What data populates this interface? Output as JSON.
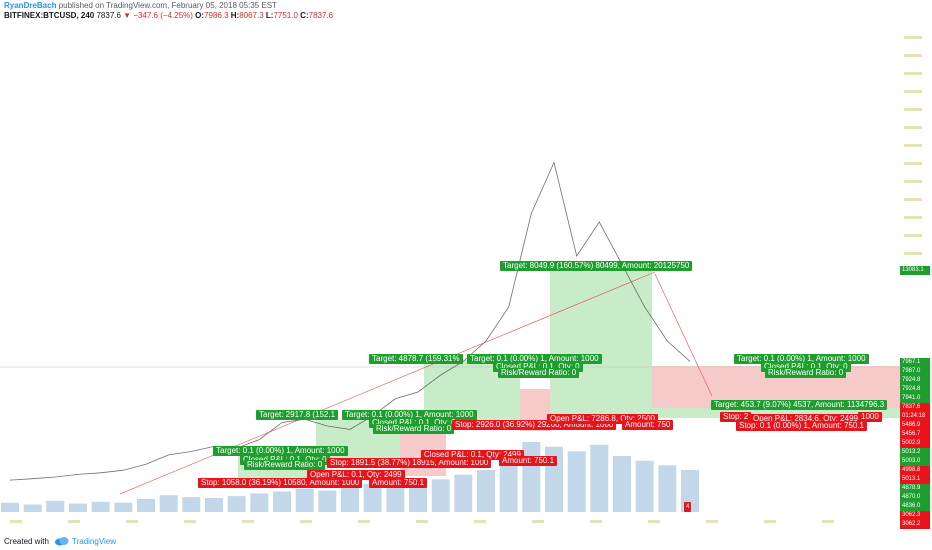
{
  "header": {
    "author": "RyanDreBach",
    "published": "published on TradingView.com, February 05, 2018 05:35 EST",
    "symbol": "BITFINEX:BTCUSD, 240",
    "last": "7837.6",
    "change": "▼ −347.6 (−4.25%)",
    "o_label": "O:",
    "o_value": "7986.3",
    "h_label": "H:",
    "h_value": "8067.3",
    "l_label": "L:",
    "l_value": "7751.0",
    "c_label": "C:",
    "c_value": "7837.6"
  },
  "footer": {
    "created_with": "Created with",
    "brand": "TradingView"
  },
  "colors": {
    "green": "#1e9e2e",
    "red": "#e8131b",
    "green_zone": "#c8ecc8",
    "red_zone": "#f7caca",
    "volume": "#8fb8d8",
    "price": "#6e6e6e",
    "axis": "#b8ad2f"
  },
  "annotations": {
    "a1_target": "Target: 0.1 (0.00%) 1, Amount: 1000",
    "a1_closed": "Closed P&L: 0.1, Qty: 0",
    "a1_rr": "Risk/Reward Ratio: 0",
    "a1_stop": "Stop: 1058.0 (36.19%) 10580, Amount: 1000",
    "a1_open": "Open P&L: 0.1, Qty: 2499",
    "a1_amount": "Amount: 750.1",
    "a2_target": "Target: 2917.8 (152.1",
    "a2_target2": "Target: 0.1 (0.00%) 1, Amount: 1000",
    "a2_closed": "Closed P&L: 0.1, Qty: 0",
    "a2_rr": "Risk/Reward Ratio: 0",
    "a2_stop": "Stop: 1891.5 (38.77%) 18915, Amount: 1000",
    "a2_open": "Closed P&L: 0.1, Qty: 2499",
    "a2_amount": "Amount: 750.1",
    "a3_target": "Target: 4878.7 (159.31%",
    "a3_target2": "Target: 0.1 (0.00%) 1, Amount: 1000",
    "a3_closed": "Closed P&L: 0.1, Qty: 0",
    "a3_rr": "Risk/Reward Ratio: 0",
    "a3_stop": "Stop: 2926.0 (36.92%) 29260, Amount: 1000",
    "a3_open": "Open P&L: 7286.8, Qty: 2500",
    "a3_amount": "Amount: 750",
    "a4_target": "Target: 8049.9 (160.57%) 80499, Amount: 20125750",
    "a5_target": "Target: 0.1 (0.00%) 1, Amount: 1000",
    "a5_closed": "Closed P&L: 0.1, Qty: 0",
    "a5_rr": "Risk/Reward Ratio: 0",
    "a5_target2": "Target: 453.7 (9.07%) 4537, Amount: 1134796.3",
    "a5_stop": "Stop: 2",
    "a5_open": "Open P&L: 2834.6, Qty: 2499",
    "a5_amount": "1000",
    "a5_stop2": "Stop: 0.1 (0.00%) 1, Amount: 750.1"
  },
  "price_tags": [
    {
      "text": "13083.1",
      "color": "#1e9e2e"
    },
    {
      "text": "7967.1",
      "color": "#1e9e2e"
    },
    {
      "text": "7987.0",
      "color": "#1e9e2e"
    },
    {
      "text": "7924.8",
      "color": "#1e9e2e"
    },
    {
      "text": "7924.8",
      "color": "#1e9e2e"
    },
    {
      "text": "7941.0",
      "color": "#1e9e2e"
    },
    {
      "text": "7837.6",
      "color": "#e8131b"
    },
    {
      "text": "01:24:18",
      "color": "#e8131b"
    },
    {
      "text": "5486.9",
      "color": "#e8131b"
    },
    {
      "text": "5456.7",
      "color": "#e8131b"
    },
    {
      "text": "5002.9",
      "color": "#e8131b"
    },
    {
      "text": "5013.2",
      "color": "#1e9e2e"
    },
    {
      "text": "5003.0",
      "color": "#1e9e2e"
    },
    {
      "text": "4998.8",
      "color": "#e8131b"
    },
    {
      "text": "5013.1",
      "color": "#e8131b"
    },
    {
      "text": "4878.9",
      "color": "#1e9e2e"
    },
    {
      "text": "4870.0",
      "color": "#1e9e2e"
    },
    {
      "text": "4836.0",
      "color": "#1e9e2e"
    },
    {
      "text": "3062.3",
      "color": "#e8131b"
    },
    {
      "text": "3062.2",
      "color": "#e8131b"
    }
  ],
  "badge": "4",
  "chart_data": {
    "type": "line",
    "x": [
      0,
      1,
      2,
      3,
      4,
      5,
      6,
      7,
      8,
      9,
      10,
      11,
      12,
      13,
      14,
      15,
      16,
      17,
      18,
      19,
      20,
      21,
      22,
      23,
      24,
      25,
      26,
      27,
      28,
      29,
      30
    ],
    "series": [
      {
        "values": [
          820,
          900,
          1000,
          1150,
          1250,
          1400,
          1750,
          2300,
          2500,
          2800,
          2700,
          3200,
          4200,
          4400,
          4000,
          3800,
          4600,
          5600,
          6000,
          7000,
          7800,
          9000,
          11000,
          16500,
          19500,
          14000,
          16000,
          13500,
          11000,
          9000,
          7800
        ]
      }
    ],
    "volume": [
      10,
      8,
      12,
      9,
      11,
      10,
      14,
      18,
      16,
      15,
      17,
      20,
      22,
      25,
      23,
      28,
      30,
      26,
      32,
      35,
      40,
      45,
      60,
      75,
      70,
      65,
      72,
      60,
      55,
      50,
      45
    ]
  }
}
